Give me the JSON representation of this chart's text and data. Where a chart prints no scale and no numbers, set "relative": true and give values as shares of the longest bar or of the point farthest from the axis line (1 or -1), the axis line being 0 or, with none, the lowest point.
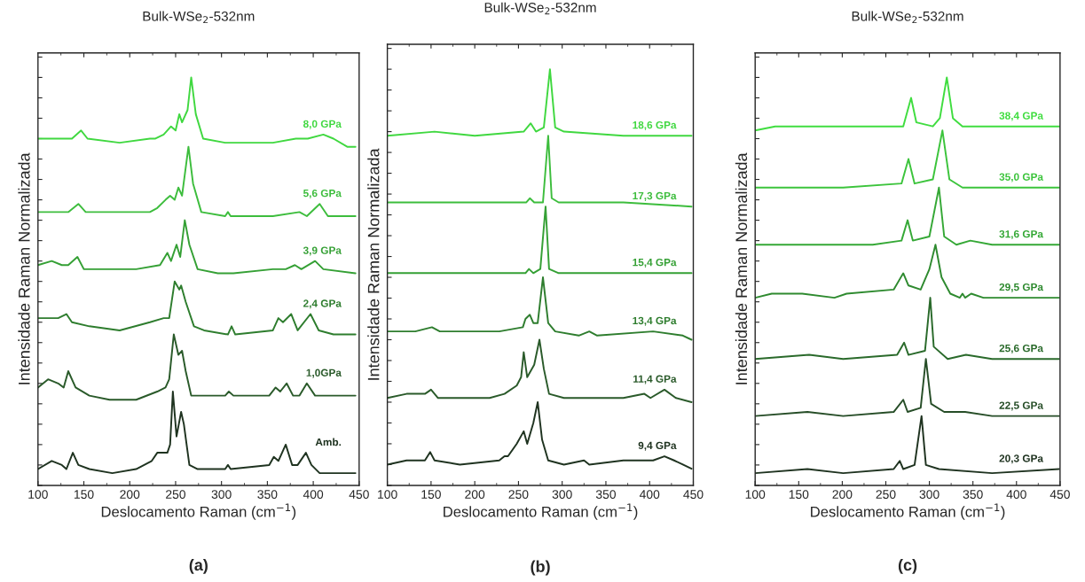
{
  "chart_data": [
    {
      "type": "line",
      "title": "Bulk-WSe$_{2}$-532nm",
      "xlabel": "Deslocamento Raman (cm$^{−1}$)",
      "ylabel": "Intensidade Raman Normalizada",
      "annotations": [
        "(a)"
      ],
      "xlim": [
        100,
        450
      ],
      "xticks": [
        100,
        150,
        200,
        250,
        300,
        350,
        400,
        450
      ],
      "relative": true,
      "tick_labels": "x",
      "grid": false,
      "legend": false,
      "line_style": "solid",
      "marker": "none",
      "series": [
        {
          "name": "Amb.",
          "color": "#1f3320",
          "x": [
            100,
            115,
            126,
            131,
            138,
            144,
            156,
            181,
            207,
            224,
            230,
            241,
            244,
            247,
            251,
            256,
            259,
            265,
            274,
            304,
            307,
            310,
            352,
            357,
            362,
            370,
            377,
            383,
            392,
            398,
            407,
            446
          ],
          "values": [
            0.04,
            0.06,
            0.05,
            0.04,
            0.08,
            0.05,
            0.04,
            0.03,
            0.04,
            0.06,
            0.08,
            0.08,
            0.1,
            0.23,
            0.12,
            0.18,
            0.15,
            0.05,
            0.04,
            0.04,
            0.05,
            0.04,
            0.05,
            0.07,
            0.06,
            0.1,
            0.05,
            0.05,
            0.08,
            0.05,
            0.03,
            0.03
          ]
        },
        {
          "name": "1,0GPa",
          "color": "#2a5a2a",
          "x": [
            100,
            111,
            122,
            128,
            133,
            141,
            156,
            178,
            207,
            230,
            239,
            243,
            248,
            253,
            257,
            261,
            267,
            278,
            304,
            308,
            313,
            352,
            359,
            364,
            371,
            378,
            385,
            393,
            402,
            409,
            430,
            446
          ],
          "values": [
            0.24,
            0.26,
            0.25,
            0.24,
            0.28,
            0.24,
            0.22,
            0.21,
            0.21,
            0.23,
            0.24,
            0.26,
            0.37,
            0.32,
            0.33,
            0.28,
            0.22,
            0.22,
            0.22,
            0.23,
            0.22,
            0.22,
            0.24,
            0.23,
            0.25,
            0.22,
            0.22,
            0.25,
            0.22,
            0.22,
            0.22,
            0.22
          ]
        },
        {
          "name": "2,4 GPa",
          "color": "#2e7d2e",
          "x": [
            100,
            111,
            122,
            131,
            137,
            156,
            189,
            222,
            237,
            243,
            249,
            254,
            256,
            261,
            270,
            281,
            307,
            311,
            315,
            356,
            362,
            367,
            376,
            383,
            397,
            406,
            422,
            446
          ],
          "values": [
            0.41,
            0.41,
            0.41,
            0.42,
            0.4,
            0.39,
            0.38,
            0.4,
            0.41,
            0.41,
            0.5,
            0.48,
            0.49,
            0.45,
            0.39,
            0.38,
            0.37,
            0.39,
            0.37,
            0.38,
            0.41,
            0.4,
            0.42,
            0.38,
            0.42,
            0.38,
            0.37,
            0.37
          ]
        },
        {
          "name": "3,9 GPa",
          "color": "#35a035",
          "x": [
            100,
            115,
            126,
            133,
            143,
            150,
            170,
            207,
            233,
            241,
            245,
            251,
            255,
            260,
            265,
            274,
            296,
            313,
            356,
            370,
            380,
            387,
            402,
            411,
            446
          ],
          "values": [
            0.54,
            0.55,
            0.54,
            0.54,
            0.56,
            0.53,
            0.53,
            0.53,
            0.54,
            0.57,
            0.55,
            0.59,
            0.56,
            0.65,
            0.59,
            0.53,
            0.52,
            0.52,
            0.53,
            0.53,
            0.54,
            0.53,
            0.55,
            0.53,
            0.52
          ]
        },
        {
          "name": "5,6 GPa",
          "color": "#3dbd3d",
          "x": [
            100,
            122,
            133,
            144,
            152,
            189,
            222,
            230,
            239,
            244,
            249,
            253,
            257,
            264,
            269,
            278,
            304,
            307,
            310,
            356,
            385,
            393,
            407,
            416,
            446
          ],
          "values": [
            0.67,
            0.67,
            0.67,
            0.69,
            0.67,
            0.67,
            0.67,
            0.68,
            0.7,
            0.71,
            0.7,
            0.73,
            0.71,
            0.83,
            0.74,
            0.67,
            0.66,
            0.67,
            0.66,
            0.66,
            0.67,
            0.66,
            0.69,
            0.66,
            0.66
          ]
        },
        {
          "name": "8,0 GPa",
          "color": "#40d840",
          "x": [
            100,
            122,
            137,
            147,
            154,
            189,
            222,
            228,
            237,
            245,
            250,
            254,
            257,
            263,
            267,
            272,
            280,
            304,
            319,
            356,
            381,
            390,
            394,
            411,
            422,
            437,
            446
          ],
          "values": [
            0.85,
            0.85,
            0.85,
            0.87,
            0.85,
            0.84,
            0.85,
            0.85,
            0.86,
            0.88,
            0.87,
            0.91,
            0.89,
            0.92,
            1.0,
            0.91,
            0.85,
            0.84,
            0.84,
            0.84,
            0.85,
            0.85,
            0.85,
            0.86,
            0.85,
            0.83,
            0.83
          ]
        }
      ]
    },
    {
      "type": "line",
      "title": "Bulk-WSe$_{2}$-532nm",
      "xlabel": "Deslocamento Raman (cm$^{−1}$)",
      "ylabel": "Intensidade Raman Normalizada",
      "annotations": [
        "(b)"
      ],
      "xlim": [
        100,
        450
      ],
      "xticks": [
        100,
        150,
        200,
        250,
        300,
        350,
        400,
        450
      ],
      "relative": true,
      "tick_labels": "x",
      "grid": false,
      "legend": false,
      "line_style": "solid",
      "marker": "none",
      "series": [
        {
          "name": "9,4 GPa",
          "color": "#1f3320",
          "x": [
            100,
            122,
            143,
            149,
            154,
            183,
            228,
            234,
            238,
            248,
            256,
            260,
            267,
            272,
            277,
            284,
            302,
            325,
            331,
            370,
            396,
            404,
            417,
            428,
            438,
            448
          ],
          "values": [
            0.05,
            0.06,
            0.06,
            0.08,
            0.06,
            0.05,
            0.06,
            0.07,
            0.07,
            0.1,
            0.13,
            0.1,
            0.15,
            0.2,
            0.11,
            0.06,
            0.05,
            0.06,
            0.05,
            0.06,
            0.06,
            0.06,
            0.07,
            0.06,
            0.05,
            0.04
          ]
        },
        {
          "name": "11,4 GPa",
          "color": "#2a5a2a",
          "x": [
            100,
            122,
            143,
            150,
            158,
            217,
            234,
            248,
            253,
            256,
            260,
            268,
            274,
            279,
            285,
            302,
            323,
            370,
            394,
            401,
            417,
            430,
            448
          ],
          "values": [
            0.21,
            0.22,
            0.22,
            0.23,
            0.21,
            0.21,
            0.22,
            0.24,
            0.26,
            0.32,
            0.26,
            0.29,
            0.35,
            0.28,
            0.22,
            0.21,
            0.21,
            0.21,
            0.22,
            0.21,
            0.23,
            0.21,
            0.2
          ]
        },
        {
          "name": "13,4 GPa",
          "color": "#2e7d2e",
          "x": [
            100,
            132,
            151,
            160,
            228,
            255,
            258,
            263,
            267,
            272,
            278,
            284,
            292,
            319,
            331,
            340,
            404,
            438,
            448
          ],
          "values": [
            0.37,
            0.37,
            0.38,
            0.37,
            0.37,
            0.38,
            0.4,
            0.41,
            0.39,
            0.39,
            0.5,
            0.39,
            0.37,
            0.36,
            0.37,
            0.36,
            0.37,
            0.36,
            0.35
          ]
        },
        {
          "name": "15,4 GPa",
          "color": "#35a035",
          "x": [
            100,
            153,
            234,
            258,
            262,
            267,
            275,
            281,
            285,
            296,
            370,
            448
          ],
          "values": [
            0.51,
            0.51,
            0.51,
            0.51,
            0.52,
            0.51,
            0.52,
            0.67,
            0.52,
            0.51,
            0.51,
            0.51
          ]
        },
        {
          "name": "17,3 GPa",
          "color": "#3dbd3d",
          "x": [
            100,
            153,
            234,
            259,
            263,
            268,
            278,
            284,
            288,
            296,
            370,
            448
          ],
          "values": [
            0.68,
            0.68,
            0.68,
            0.68,
            0.69,
            0.68,
            0.68,
            0.84,
            0.69,
            0.68,
            0.68,
            0.67
          ]
        },
        {
          "name": "18,6 GPa",
          "color": "#40d840",
          "x": [
            100,
            154,
            200,
            256,
            264,
            270,
            279,
            286,
            292,
            302,
            370,
            448
          ],
          "values": [
            0.84,
            0.85,
            0.84,
            0.85,
            0.87,
            0.85,
            0.86,
            1.0,
            0.86,
            0.85,
            0.84,
            0.84
          ]
        }
      ]
    },
    {
      "type": "line",
      "title": "Bulk-WSe$_{2}$-532nm",
      "xlabel": "Deslocamento Raman (cm$^{−1}$)",
      "ylabel": "Intensidade Raman Normalizada",
      "annotations": [
        "(c)"
      ],
      "xlim": [
        100,
        450
      ],
      "xticks": [
        100,
        150,
        200,
        250,
        300,
        350,
        400,
        450
      ],
      "relative": true,
      "tick_labels": "x",
      "grid": false,
      "legend": false,
      "line_style": "solid",
      "marker": "none",
      "series": [
        {
          "name": "20,3 GPa",
          "color": "#1f3320",
          "x": [
            100,
            160,
            201,
            259,
            266,
            270,
            283,
            291,
            296,
            311,
            372,
            449
          ],
          "values": [
            0.03,
            0.04,
            0.03,
            0.04,
            0.06,
            0.04,
            0.05,
            0.17,
            0.05,
            0.04,
            0.03,
            0.04
          ]
        },
        {
          "name": "22,5 GPa",
          "color": "#264d27",
          "x": [
            100,
            160,
            201,
            259,
            270,
            275,
            290,
            296,
            302,
            317,
            341,
            372,
            449
          ],
          "values": [
            0.17,
            0.18,
            0.17,
            0.18,
            0.21,
            0.18,
            0.19,
            0.31,
            0.2,
            0.18,
            0.18,
            0.17,
            0.17
          ]
        },
        {
          "name": "25,6 GPa",
          "color": "#2a6a2b",
          "x": [
            100,
            162,
            201,
            263,
            271,
            276,
            295,
            301,
            305,
            321,
            342,
            372,
            449
          ],
          "values": [
            0.31,
            0.32,
            0.31,
            0.32,
            0.35,
            0.32,
            0.33,
            0.46,
            0.34,
            0.31,
            0.32,
            0.31,
            0.31
          ]
        },
        {
          "name": "29,5 GPa",
          "color": "#2e8a2f",
          "x": [
            100,
            119,
            154,
            191,
            205,
            259,
            270,
            276,
            290,
            300,
            307,
            314,
            324,
            335,
            338,
            341,
            348,
            362,
            449
          ],
          "values": [
            0.46,
            0.47,
            0.47,
            0.46,
            0.47,
            0.48,
            0.52,
            0.49,
            0.48,
            0.53,
            0.59,
            0.51,
            0.47,
            0.46,
            0.47,
            0.46,
            0.47,
            0.46,
            0.46
          ]
        },
        {
          "name": "31,6 GPa",
          "color": "#35a836",
          "x": [
            100,
            177,
            235,
            268,
            275,
            281,
            300,
            311,
            317,
            331,
            347,
            372,
            449
          ],
          "values": [
            0.59,
            0.59,
            0.59,
            0.6,
            0.65,
            0.6,
            0.61,
            0.73,
            0.61,
            0.59,
            0.6,
            0.59,
            0.59
          ]
        },
        {
          "name": "35,0 GPa",
          "color": "#3cc43c",
          "x": [
            100,
            201,
            268,
            276,
            283,
            304,
            315,
            323,
            338,
            372,
            449
          ],
          "values": [
            0.73,
            0.73,
            0.74,
            0.8,
            0.74,
            0.75,
            0.87,
            0.75,
            0.73,
            0.73,
            0.73
          ]
        },
        {
          "name": "38,4 GPa",
          "color": "#40dd40",
          "x": [
            100,
            123,
            167,
            270,
            279,
            285,
            304,
            312,
            320,
            327,
            338,
            355,
            389,
            449
          ],
          "values": [
            0.87,
            0.88,
            0.88,
            0.88,
            0.95,
            0.89,
            0.88,
            0.9,
            1.0,
            0.9,
            0.88,
            0.88,
            0.88,
            0.88
          ]
        }
      ]
    }
  ]
}
